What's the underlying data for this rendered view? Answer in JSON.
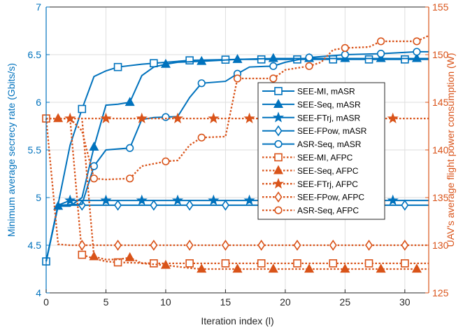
{
  "chart_data": {
    "type": "line",
    "title": "",
    "xlabel": "Iteration index (l)",
    "ylabel_left": "Minimum average secrecy rate (Gbits/s)",
    "ylabel_right": "UAV's average flight power consumption (W)",
    "xlim": [
      0,
      32
    ],
    "ylim_left": [
      4,
      7
    ],
    "ylim_right": [
      125,
      155
    ],
    "xticks": [
      0,
      5,
      10,
      15,
      20,
      25,
      30
    ],
    "yticks_left": [
      4,
      4.5,
      5,
      5.5,
      6,
      6.5,
      7
    ],
    "yticks_right": [
      125,
      130,
      135,
      140,
      145,
      150,
      155
    ],
    "grid": true,
    "legend_position": "right",
    "colors": {
      "left_axis": "#0072BD",
      "right_axis": "#D95319"
    },
    "series": [
      {
        "name": "SEE-MI, mASR",
        "axis": "left",
        "marker": "square",
        "points": [
          [
            0,
            4.33
          ],
          [
            1,
            4.93
          ],
          [
            2,
            5.55
          ],
          [
            3,
            5.93
          ],
          [
            4,
            6.27
          ],
          [
            5,
            6.33
          ],
          [
            6,
            6.37
          ],
          [
            8,
            6.4
          ],
          [
            9,
            6.41
          ],
          [
            12,
            6.44
          ],
          [
            16,
            6.45
          ],
          [
            19,
            6.45
          ],
          [
            22,
            6.45
          ],
          [
            25,
            6.45
          ],
          [
            28,
            6.45
          ],
          [
            32,
            6.45
          ]
        ]
      },
      {
        "name": "SEE-Seq, mASR",
        "axis": "left",
        "marker": "triangle",
        "points": [
          [
            0,
            4.33
          ],
          [
            1,
            4.91
          ],
          [
            2,
            4.91
          ],
          [
            3,
            5.0
          ],
          [
            4,
            5.53
          ],
          [
            5,
            5.97
          ],
          [
            6,
            5.98
          ],
          [
            7,
            6.0
          ],
          [
            8,
            6.28
          ],
          [
            9,
            6.37
          ],
          [
            10,
            6.4
          ],
          [
            11,
            6.42
          ],
          [
            13,
            6.43
          ],
          [
            16,
            6.45
          ],
          [
            19,
            6.46
          ],
          [
            22,
            6.46
          ],
          [
            25,
            6.46
          ],
          [
            28,
            6.46
          ],
          [
            32,
            6.46
          ]
        ]
      },
      {
        "name": "SEE-FTrj, mASR",
        "axis": "left",
        "marker": "star",
        "points": [
          [
            0,
            4.33
          ],
          [
            1,
            4.92
          ],
          [
            2,
            4.97
          ],
          [
            32,
            4.97
          ]
        ]
      },
      {
        "name": "SEE-FPow, mASR",
        "axis": "left",
        "marker": "diamond",
        "points": [
          [
            0,
            4.33
          ],
          [
            1,
            4.92
          ],
          [
            32,
            4.92
          ]
        ]
      },
      {
        "name": "ASR-Seq, mASR",
        "axis": "left",
        "marker": "circle",
        "points": [
          [
            0,
            4.33
          ],
          [
            1,
            4.92
          ],
          [
            3,
            4.93
          ],
          [
            4,
            5.33
          ],
          [
            5,
            5.5
          ],
          [
            7,
            5.52
          ],
          [
            8,
            5.82
          ],
          [
            9,
            5.84
          ],
          [
            11,
            5.85
          ],
          [
            12,
            6.05
          ],
          [
            13,
            6.2
          ],
          [
            15,
            6.22
          ],
          [
            16,
            6.3
          ],
          [
            17,
            6.37
          ],
          [
            19,
            6.38
          ],
          [
            20,
            6.42
          ],
          [
            22,
            6.47
          ],
          [
            25,
            6.5
          ],
          [
            28,
            6.51
          ],
          [
            31,
            6.53
          ],
          [
            32,
            6.53
          ]
        ]
      },
      {
        "name": "SEE-MI, AFPC",
        "axis": "right",
        "marker": "square",
        "points": [
          [
            0,
            143.3
          ],
          [
            1,
            143.3
          ],
          [
            2,
            143.3
          ],
          [
            3,
            129.0
          ],
          [
            4,
            128.6
          ],
          [
            5,
            128.3
          ],
          [
            6,
            128.2
          ],
          [
            9,
            128.1
          ],
          [
            12,
            128.1
          ],
          [
            16,
            128.1
          ],
          [
            20,
            128.1
          ],
          [
            24,
            128.1
          ],
          [
            28,
            128.1
          ],
          [
            32,
            128.1
          ]
        ]
      },
      {
        "name": "SEE-Seq, AFPC",
        "axis": "right",
        "marker": "triangle",
        "points": [
          [
            0,
            143.3
          ],
          [
            1,
            143.3
          ],
          [
            2,
            143.3
          ],
          [
            3,
            143.3
          ],
          [
            4,
            128.8
          ],
          [
            5,
            128.5
          ],
          [
            6,
            128.5
          ],
          [
            7,
            128.7
          ],
          [
            8,
            128.1
          ],
          [
            10,
            127.9
          ],
          [
            12,
            127.6
          ],
          [
            13,
            127.5
          ],
          [
            16,
            127.5
          ],
          [
            19,
            127.5
          ],
          [
            22,
            127.5
          ],
          [
            25,
            127.5
          ],
          [
            28,
            127.5
          ],
          [
            32,
            127.5
          ]
        ]
      },
      {
        "name": "SEE-FTrj, AFPC",
        "axis": "right",
        "marker": "star",
        "points": [
          [
            0,
            143.3
          ],
          [
            32,
            143.3
          ]
        ]
      },
      {
        "name": "SEE-FPow, AFPC",
        "axis": "right",
        "marker": "diamond",
        "points": [
          [
            0,
            143.3
          ],
          [
            1,
            130.1
          ],
          [
            2,
            130.0
          ],
          [
            32,
            130.0
          ]
        ]
      },
      {
        "name": "ASR-Seq, AFPC",
        "axis": "right",
        "marker": "circle",
        "points": [
          [
            0,
            143.3
          ],
          [
            1,
            143.3
          ],
          [
            2,
            143.3
          ],
          [
            3,
            142.0
          ],
          [
            4,
            137.0
          ],
          [
            5,
            136.9
          ],
          [
            7,
            137.0
          ],
          [
            8,
            138.3
          ],
          [
            10,
            138.8
          ],
          [
            11,
            138.9
          ],
          [
            12,
            140.5
          ],
          [
            13,
            141.3
          ],
          [
            15,
            141.4
          ],
          [
            16,
            147.5
          ],
          [
            19,
            147.5
          ],
          [
            20,
            148.4
          ],
          [
            22,
            148.8
          ],
          [
            23,
            149.2
          ],
          [
            24,
            150.5
          ],
          [
            25,
            150.7
          ],
          [
            27,
            150.8
          ],
          [
            28,
            151.4
          ],
          [
            31,
            151.4
          ],
          [
            32,
            152.0
          ]
        ]
      }
    ],
    "legend": [
      "SEE-MI, mASR",
      "SEE-Seq, mASR",
      "SEE-FTrj, mASR",
      "SEE-FPow, mASR",
      "ASR-Seq, mASR",
      "SEE-MI, AFPC",
      "SEE-Seq, AFPC",
      "SEE-FTrj, AFPC",
      "SEE-FPow, AFPC",
      "ASR-Seq, AFPC"
    ]
  }
}
